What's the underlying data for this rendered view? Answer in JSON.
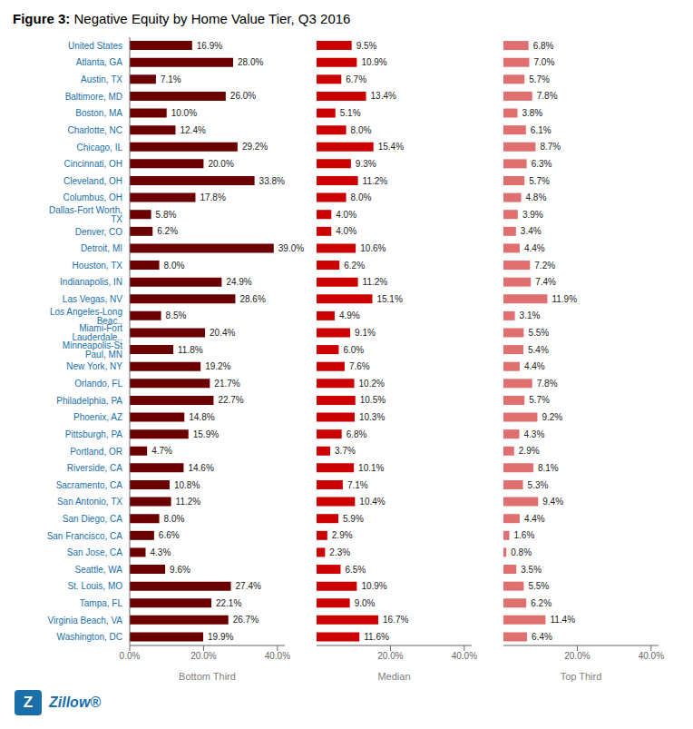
{
  "chart_data": [
    {
      "type": "bar",
      "orientation": "horizontal",
      "title": "Figure 3: Negative Equity by Home Value Tier, Q3 2016",
      "annotations": [
        {
          "text": "Z"
        },
        {
          "text": "Zillow®"
        }
      ],
      "x_label": "Bottom Third",
      "color": "#6b0000",
      "data_labels": true,
      "categories": [
        "United States",
        "Atlanta, GA",
        "Austin, TX",
        "Baltimore, MD",
        "Boston, MA",
        "Charlotte, NC",
        "Chicago, IL",
        "Cincinnati, OH",
        "Cleveland, OH",
        "Columbus, OH",
        "Dallas-Fort Worth, TX",
        "Denver, CO",
        "Detroit, MI",
        "Houston, TX",
        "Indianapolis, IN",
        "Las Vegas, NV",
        "Los Angeles-Long Beac..",
        "Miami-Fort Lauderdale..",
        "Minneapolis-St Paul, MN",
        "New York, NY",
        "Orlando, FL",
        "Philadelphia, PA",
        "Phoenix, AZ",
        "Pittsburgh, PA",
        "Portland, OR",
        "Riverside, CA",
        "Sacramento, CA",
        "San Antonio, TX",
        "San Diego, CA",
        "San Francisco, CA",
        "San Jose, CA",
        "Seattle, WA",
        "St. Louis, MO",
        "Tampa, FL",
        "Virginia Beach, VA",
        "Washington, DC"
      ],
      "values": [
        16.9,
        28.0,
        7.1,
        26.0,
        10.0,
        12.4,
        29.2,
        20.0,
        33.8,
        17.8,
        5.8,
        6.2,
        39.0,
        8.0,
        24.9,
        28.6,
        8.5,
        20.4,
        11.8,
        19.2,
        21.7,
        22.7,
        14.8,
        15.9,
        4.7,
        14.6,
        10.8,
        11.2,
        8.0,
        6.6,
        4.3,
        9.6,
        27.4,
        22.1,
        26.7,
        19.9
      ],
      "value_labels": [
        "16.9%",
        "28.0%",
        "7.1%",
        "26.0%",
        "10.0%",
        "12.4%",
        "29.2%",
        "20.0%",
        "33.8%",
        "17.8%",
        "5.8%",
        "6.2%",
        "39.0%",
        "8.0%",
        "24.9%",
        "28.6%",
        "8.5%",
        "20.4%",
        "11.8%",
        "19.2%",
        "21.7%",
        "22.7%",
        "14.8%",
        "15.9%",
        "4.7%",
        "14.6%",
        "10.8%",
        "11.2%",
        "8.0%",
        "6.6%",
        "4.3%",
        "9.6%",
        "27.4%",
        "22.1%",
        "26.7%",
        "19.9%"
      ],
      "xlim": [
        0,
        42
      ],
      "xticks": [
        {
          "value": 0,
          "label": "0.0%"
        },
        {
          "value": 20,
          "label": "20.0%"
        },
        {
          "value": 40,
          "label": "40.0%"
        }
      ]
    },
    {
      "type": "bar",
      "orientation": "horizontal",
      "tick_labels": "x",
      "x_label": "Median",
      "color": "#cc0000",
      "data_labels": true,
      "categories": [
        "United States",
        "Atlanta, GA",
        "Austin, TX",
        "Baltimore, MD",
        "Boston, MA",
        "Charlotte, NC",
        "Chicago, IL",
        "Cincinnati, OH",
        "Cleveland, OH",
        "Columbus, OH",
        "Dallas-Fort Worth, TX",
        "Denver, CO",
        "Detroit, MI",
        "Houston, TX",
        "Indianapolis, IN",
        "Las Vegas, NV",
        "Los Angeles-Long Beac..",
        "Miami-Fort Lauderdale..",
        "Minneapolis-St Paul, MN",
        "New York, NY",
        "Orlando, FL",
        "Philadelphia, PA",
        "Phoenix, AZ",
        "Pittsburgh, PA",
        "Portland, OR",
        "Riverside, CA",
        "Sacramento, CA",
        "San Antonio, TX",
        "San Diego, CA",
        "San Francisco, CA",
        "San Jose, CA",
        "Seattle, WA",
        "St. Louis, MO",
        "Tampa, FL",
        "Virginia Beach, VA",
        "Washington, DC"
      ],
      "values": [
        9.5,
        10.9,
        6.7,
        13.4,
        5.1,
        8.0,
        15.4,
        9.3,
        11.2,
        8.0,
        4.0,
        4.0,
        10.6,
        6.2,
        11.2,
        15.1,
        4.9,
        9.1,
        6.0,
        7.6,
        10.2,
        10.5,
        10.3,
        6.8,
        3.7,
        10.1,
        7.1,
        10.4,
        5.9,
        2.9,
        2.3,
        6.5,
        10.9,
        9.0,
        16.7,
        11.6
      ],
      "value_labels": [
        "9.5%",
        "10.9%",
        "6.7%",
        "13.4%",
        "5.1%",
        "8.0%",
        "15.4%",
        "9.3%",
        "11.2%",
        "8.0%",
        "4.0%",
        "4.0%",
        "10.6%",
        "6.2%",
        "11.2%",
        "15.1%",
        "4.9%",
        "9.1%",
        "6.0%",
        "7.6%",
        "10.2%",
        "10.5%",
        "10.3%",
        "6.8%",
        "3.7%",
        "10.1%",
        "7.1%",
        "10.4%",
        "5.9%",
        "2.9%",
        "2.3%",
        "6.5%",
        "10.9%",
        "9.0%",
        "16.7%",
        "11.6%"
      ],
      "xlim": [
        0,
        42
      ],
      "xticks": [
        {
          "value": 0,
          "label": "0.0%"
        },
        {
          "value": 20,
          "label": "20.0%"
        },
        {
          "value": 40,
          "label": "40.0%"
        }
      ]
    },
    {
      "type": "bar",
      "orientation": "horizontal",
      "tick_labels": "x",
      "x_label": "Top Third",
      "color": "#e07070",
      "data_labels": true,
      "categories": [
        "United States",
        "Atlanta, GA",
        "Austin, TX",
        "Baltimore, MD",
        "Boston, MA",
        "Charlotte, NC",
        "Chicago, IL",
        "Cincinnati, OH",
        "Cleveland, OH",
        "Columbus, OH",
        "Dallas-Fort Worth, TX",
        "Denver, CO",
        "Detroit, MI",
        "Houston, TX",
        "Indianapolis, IN",
        "Las Vegas, NV",
        "Los Angeles-Long Beac..",
        "Miami-Fort Lauderdale..",
        "Minneapolis-St Paul, MN",
        "New York, NY",
        "Orlando, FL",
        "Philadelphia, PA",
        "Phoenix, AZ",
        "Pittsburgh, PA",
        "Portland, OR",
        "Riverside, CA",
        "Sacramento, CA",
        "San Antonio, TX",
        "San Diego, CA",
        "San Francisco, CA",
        "San Jose, CA",
        "Seattle, WA",
        "St. Louis, MO",
        "Tampa, FL",
        "Virginia Beach, VA",
        "Washington, DC"
      ],
      "values": [
        6.8,
        7.0,
        5.7,
        7.8,
        3.8,
        6.1,
        8.7,
        6.3,
        5.7,
        4.8,
        3.9,
        3.4,
        4.4,
        7.2,
        7.4,
        11.9,
        3.1,
        5.5,
        5.4,
        4.4,
        7.8,
        5.7,
        9.2,
        4.3,
        2.9,
        8.1,
        5.3,
        9.4,
        4.4,
        1.6,
        0.8,
        3.5,
        5.5,
        6.2,
        11.4,
        6.4
      ],
      "value_labels": [
        "6.8%",
        "7.0%",
        "5.7%",
        "7.8%",
        "3.8%",
        "6.1%",
        "8.7%",
        "6.3%",
        "5.7%",
        "4.8%",
        "3.9%",
        "3.4%",
        "4.4%",
        "7.2%",
        "7.4%",
        "11.9%",
        "3.1%",
        "5.5%",
        "5.4%",
        "4.4%",
        "7.8%",
        "5.7%",
        "9.2%",
        "4.3%",
        "2.9%",
        "8.1%",
        "5.3%",
        "9.4%",
        "4.4%",
        "1.6%",
        "0.8%",
        "3.5%",
        "5.5%",
        "6.2%",
        "11.4%",
        "6.4%"
      ],
      "xlim": [
        0,
        42
      ],
      "xticks": [
        {
          "value": 0,
          "label": "0.0%"
        },
        {
          "value": 20,
          "label": "20.0%"
        },
        {
          "value": 40,
          "label": "40.0%"
        }
      ]
    }
  ]
}
